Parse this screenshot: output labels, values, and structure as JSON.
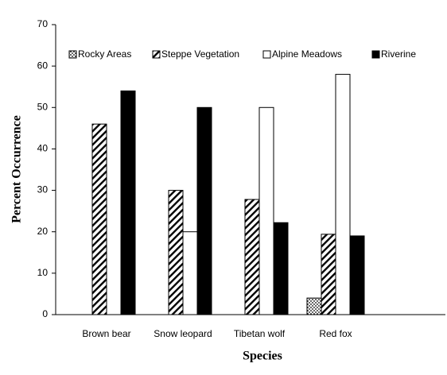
{
  "chart_data": {
    "type": "bar",
    "x_label": "Species",
    "y_label": "Percent Occurrence",
    "categories": [
      "Brown bear",
      "Snow leopard",
      "Tibetan wolf",
      "Red fox"
    ],
    "series": [
      {
        "name": "Rocky Areas",
        "color": "#000000",
        "fill": "dots",
        "values": [
          0,
          0,
          0,
          4
        ]
      },
      {
        "name": "Steppe Vegetation",
        "color": "#000000",
        "fill": "hatch",
        "values": [
          46,
          30,
          27.8,
          19.4
        ]
      },
      {
        "name": "Alpine Meadows",
        "color": "#000000",
        "fill": "none",
        "values": [
          0,
          20,
          50,
          58
        ]
      },
      {
        "name": "Riverine",
        "color": "#000000",
        "fill": "solid",
        "values": [
          54,
          50,
          22.2,
          19
        ]
      }
    ],
    "ylim": [
      0,
      70
    ],
    "yticks": [
      0,
      10,
      20,
      30,
      40,
      50,
      60,
      70
    ],
    "grid": false,
    "legend": "top"
  }
}
